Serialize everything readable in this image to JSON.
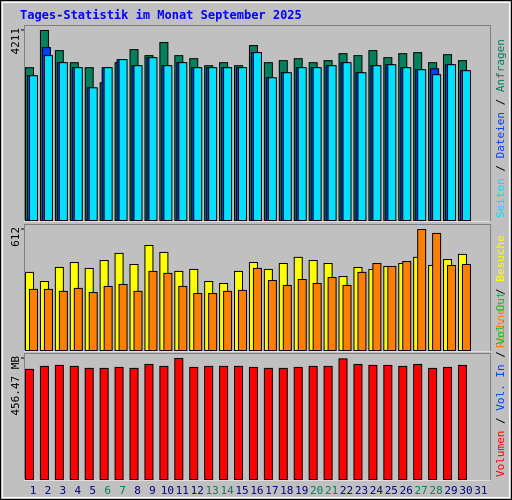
{
  "chart_data": [
    {
      "type": "bar",
      "title": "Tages-Statistik im Monat September 2025",
      "ylim": [
        0,
        4211
      ],
      "yticks": [
        4211
      ],
      "series": [
        {
          "name": "Anfragen",
          "color": "#00805c",
          "values": [
            3387,
            4211,
            3765,
            3498,
            3387,
            3052,
            3498,
            3788,
            3654,
            3944,
            3654,
            3587,
            3431,
            3498,
            3431,
            3877,
            3498,
            3543,
            3587,
            3498,
            3543,
            3698,
            3654,
            3765,
            3609,
            3698,
            3721,
            3498,
            3676,
            3543,
            null
          ]
        },
        {
          "name": "Dateien",
          "color": "#0040ff",
          "values": [
            3208,
            3832,
            3498,
            3387,
            2941,
            3387,
            3565,
            3431,
            3609,
            3431,
            3498,
            3387,
            3387,
            3387,
            3387,
            3721,
            3164,
            3275,
            3387,
            3387,
            3431,
            3498,
            3275,
            3431,
            3453,
            3387,
            3342,
            3364,
            3453,
            3320,
            null
          ]
        },
        {
          "name": "Seiten",
          "color": "#00e0ff",
          "values": [
            3208,
            3654,
            3498,
            3387,
            2941,
            3387,
            3565,
            3431,
            3609,
            3431,
            3498,
            3387,
            3387,
            3387,
            3387,
            3721,
            3164,
            3275,
            3387,
            3387,
            3431,
            3498,
            3275,
            3431,
            3453,
            3387,
            3342,
            3231,
            3453,
            3320,
            null
          ]
        }
      ]
    },
    {
      "type": "bar",
      "ylim": [
        0,
        612
      ],
      "yticks": [
        612
      ],
      "series": [
        {
          "name": "Besuche",
          "color": "#ffff00",
          "values": [
            395,
            349,
            420,
            445,
            415,
            455,
            491,
            435,
            531,
            496,
            400,
            410,
            349,
            339,
            400,
            445,
            410,
            440,
            471,
            455,
            440,
            374,
            420,
            410,
            425,
            440,
            471,
            430,
            460,
            486,
            null
          ]
        },
        {
          "name": "Rechner",
          "color": "#ff8000",
          "values": [
            309,
            309,
            299,
            314,
            293,
            324,
            334,
            299,
            400,
            390,
            324,
            288,
            288,
            299,
            304,
            415,
            354,
            329,
            359,
            339,
            369,
            329,
            395,
            440,
            425,
            450,
            612,
            592,
            430,
            435,
            null
          ]
        }
      ]
    },
    {
      "type": "bar",
      "ylim": [
        0,
        456.47
      ],
      "yticks": [
        {
          "value": 456.47,
          "label": "456.47 MB"
        }
      ],
      "series": [
        {
          "name": "Volumen",
          "color": "#ff0000",
          "values": [
            415.4,
            426.6,
            430.3,
            426.6,
            419.1,
            419.1,
            422.8,
            419.1,
            434.1,
            426.6,
            456.47,
            422.8,
            426.6,
            426.6,
            426.6,
            422.8,
            419.1,
            419.1,
            422.8,
            426.6,
            426.6,
            455,
            434.1,
            430.3,
            430.3,
            426.6,
            434.1,
            419.1,
            422.8,
            430.3,
            null
          ]
        }
      ],
      "legend_extra": [
        {
          "name": "Vol. In",
          "color": "#0040ff"
        },
        {
          "name": "Vol. Out",
          "color": "#00c040"
        }
      ],
      "categories": [
        "1",
        "2",
        "3",
        "4",
        "5",
        "6",
        "7",
        "8",
        "9",
        "10",
        "11",
        "12",
        "13",
        "14",
        "15",
        "16",
        "17",
        "18",
        "19",
        "20",
        "21",
        "22",
        "23",
        "24",
        "25",
        "26",
        "27",
        "28",
        "29",
        "30",
        "31"
      ],
      "category_colors": [
        "#000080",
        "#000080",
        "#000080",
        "#000080",
        "#000080",
        "#00805c",
        "#00805c",
        "#000080",
        "#000080",
        "#000080",
        "#000080",
        "#000080",
        "#00805c",
        "#00805c",
        "#000080",
        "#000080",
        "#000080",
        "#000080",
        "#000080",
        "#00805c",
        "#00805c",
        "#000080",
        "#000080",
        "#000080",
        "#000080",
        "#000080",
        "#00805c",
        "#00805c",
        "#000080",
        "#000080",
        "#000080"
      ]
    }
  ]
}
